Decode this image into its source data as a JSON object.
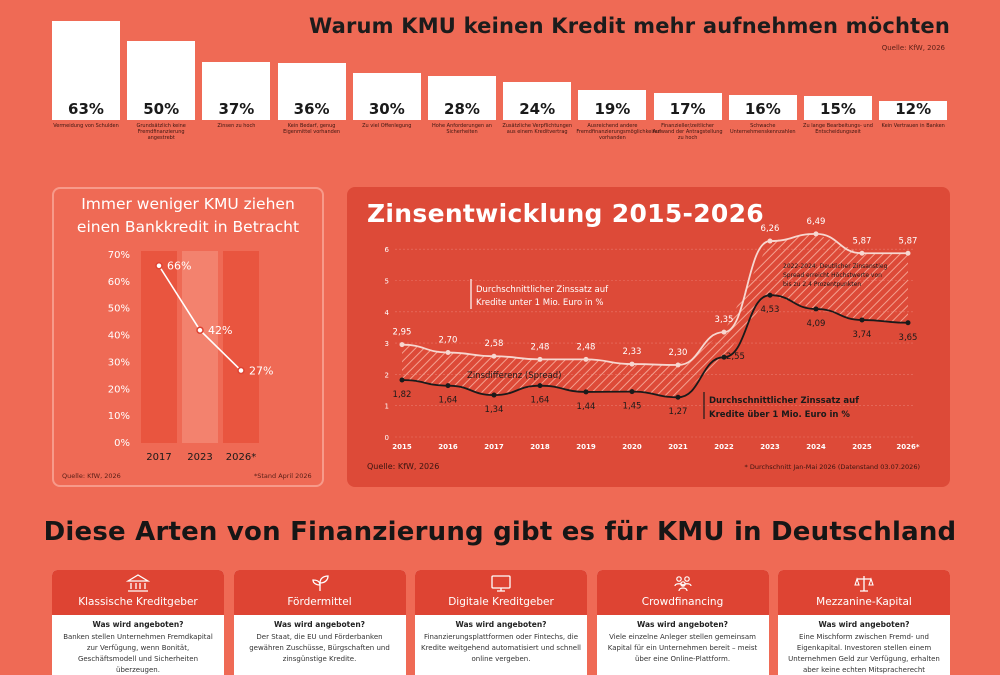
{
  "top": {
    "title": "Warum KMU keinen Kredit mehr aufnehmen möchten",
    "source": "Quelle: KfW, 2026"
  },
  "left": {
    "title_line1": "Immer weniger KMU ziehen",
    "title_line2": "einen Bankkredit in Betracht",
    "source": "Quelle: KfW, 2026",
    "footnote": "*Stand April 2026"
  },
  "right": {
    "title": "Zinsentwicklung 2015-2026",
    "source": "Quelle: KfW, 2026",
    "footnote": "* Durchschnitt Jan-Mai 2026 (Datenstand 03.07.2026)",
    "annotation_upper": [
      "Durchschnittlicher Zinssatz auf",
      "Kredite unter 1 Mio. Euro in %"
    ],
    "annotation_lower": [
      "Durchschnittlicher Zinssatz auf",
      "Kredite über 1 Mio. Euro in %"
    ],
    "annotation_spread": "Zinsdifferenz (Spread)",
    "annotation_peak": [
      "2022-2024: Deutlicher Zinsanstieg",
      "Spread erreicht Höchstwerte von",
      "bis zu 2,4 Prozentpunkten"
    ]
  },
  "bottom": {
    "title": "Diese Arten von Finanzierung gibt es für KMU in Deutschland",
    "cards": [
      {
        "name": "Klassische Kreditgeber",
        "icon": "bank-icon",
        "question": "Was wird angeboten?",
        "text": "Banken stellen Unternehmen Fremdkapital zur Verfügung, wenn Bonität, Geschäftsmodell und Sicherheiten überzeugen."
      },
      {
        "name": "Fördermittel",
        "icon": "sprout-icon",
        "question": "Was wird angeboten?",
        "text": "Der Staat, die EU und Förderbanken gewähren Zuschüsse, Bürgschaften und zinsgünstige Kredite."
      },
      {
        "name": "Digitale Kreditgeber",
        "icon": "monitor-icon",
        "question": "Was wird angeboten?",
        "text": "Finanzierungsplattformen oder Fintechs, die Kredite weitgehend automatisiert und schnell online vergeben."
      },
      {
        "name": "Crowdfinancing",
        "icon": "crowd-icon",
        "question": "Was wird angeboten?",
        "text": "Viele einzelne Anleger stellen gemeinsam Kapital für ein Unternehmen bereit – meist über eine Online-Plattform."
      },
      {
        "name": "Mezzanine-Kapital",
        "icon": "scale-icon",
        "question": "Was wird angeboten?",
        "text": "Eine Mischform zwischen Fremd- und Eigenkapital. Investoren stellen einem Unternehmen Geld zur Verfügung, erhalten aber keine echten Mitspracherecht"
      }
    ]
  },
  "colors": {
    "background": "#ef6a55",
    "panel": "#dd4a38",
    "upper_line": "#f7d7d0",
    "lower_line": "#1a1a1a",
    "bar_top": "#ffffff",
    "bar_left_highlight": "#f79a8a"
  },
  "chart_data": [
    {
      "type": "bar",
      "title": "Warum KMU keinen Kredit mehr aufnehmen möchten",
      "values": [
        63,
        50,
        37,
        36,
        30,
        28,
        24,
        19,
        17,
        16,
        15,
        12
      ],
      "value_labels": [
        "63%",
        "50%",
        "37%",
        "36%",
        "30%",
        "28%",
        "24%",
        "19%",
        "17%",
        "16%",
        "15%",
        "12%"
      ],
      "categories": [
        "Vermeidung von Schulden",
        "Grundsätzlich keine Fremdfinanzierung angestrebt",
        "Zinsen zu hoch",
        "Kein Bedarf, genug Eigenmittel vorhanden",
        "Zu viel Offenlegung",
        "Hohe Anforderungen an Sicherheiten",
        "Zusätzliche Verpflichtungen aus einem Kreditvertrag",
        "Ausreichend andere Fremdfinanzierungsmöglichkeiten vorhanden",
        "Finanzieller/zeitlicher Aufwand der Antragstellung zu hoch",
        "Schwache Unternehmenskennzahlen",
        "Zu lange Bearbeitungs- und Entscheidungszeit",
        "Kein Vertrauen in Banken"
      ],
      "ylim": [
        0,
        100
      ]
    },
    {
      "type": "line",
      "title": "Immer weniger KMU ziehen einen Bankkredit in Betracht",
      "x": [
        "2017",
        "2023",
        "2026*"
      ],
      "values": [
        66,
        42,
        27
      ],
      "value_labels": [
        "66%",
        "42%",
        "27%"
      ],
      "yticks": [
        "0%",
        "10%",
        "20%",
        "30%",
        "40%",
        "50%",
        "60%",
        "70%"
      ],
      "ylim": [
        0,
        70
      ]
    },
    {
      "type": "line",
      "title": "Zinsentwicklung 2015-2026",
      "x": [
        "2015",
        "2016",
        "2017",
        "2018",
        "2019",
        "2020",
        "2021",
        "2022",
        "2023",
        "2024",
        "2025",
        "2026*"
      ],
      "yticks": [
        "0",
        "1",
        "2",
        "3",
        "4",
        "5",
        "6"
      ],
      "ylim": [
        0,
        6
      ],
      "series": [
        {
          "name": "Durchschnittlicher Zinssatz auf Kredite unter 1 Mio. Euro in %",
          "values": [
            2.95,
            2.7,
            2.58,
            2.48,
            2.48,
            2.33,
            2.3,
            3.35,
            6.26,
            6.49,
            5.87,
            5.87
          ],
          "labels": [
            "2,95",
            "2,70",
            "2,58",
            "2,48",
            "2,48",
            "2,33",
            "2,30",
            "3,35",
            "6,26",
            "6,49",
            "5,87",
            "5,87"
          ]
        },
        {
          "name": "Durchschnittlicher Zinssatz auf Kredite über 1 Mio. Euro in %",
          "values": [
            1.82,
            1.64,
            1.34,
            1.64,
            1.44,
            1.45,
            1.27,
            2.55,
            4.53,
            4.09,
            3.74,
            3.65
          ],
          "labels": [
            "1,82",
            "1,64",
            "1,34",
            "1,64",
            "1,44",
            "1,45",
            "1,27",
            "2,55",
            "4,53",
            "4,09",
            "3,74",
            "3,65"
          ]
        }
      ]
    }
  ]
}
